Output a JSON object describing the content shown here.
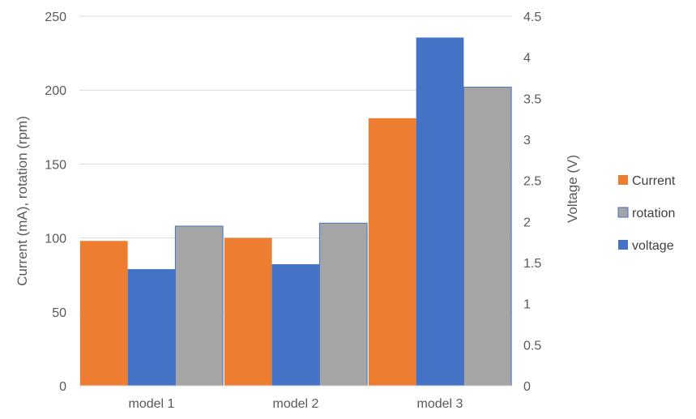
{
  "chart_data": {
    "type": "bar",
    "categories": [
      "model 1",
      "model 2",
      "model 3"
    ],
    "series": [
      {
        "name": "Current",
        "axis": "left",
        "color": "#ED7D31",
        "values": [
          98,
          100,
          181
        ]
      },
      {
        "name": "voltage",
        "axis": "right",
        "color": "#4472C4",
        "values": [
          1.42,
          1.48,
          4.24
        ]
      },
      {
        "name": "rotation",
        "axis": "left",
        "color": "#A5A5A5",
        "values": [
          108,
          110,
          202
        ]
      }
    ],
    "legend_order": [
      "Current",
      "rotation",
      "voltage"
    ],
    "legend_position": "right",
    "ylabel": "Current (mA), rotation (rpm)",
    "y2label": "Voltage (V)",
    "xlabel": "",
    "ylim": [
      0,
      250
    ],
    "yticks": [
      "0",
      "50",
      "100",
      "150",
      "200",
      "250"
    ],
    "y2lim": [
      0,
      4.5
    ],
    "y2ticks": [
      "0",
      "0.5",
      "1",
      "1.5",
      "2",
      "2.5",
      "3",
      "3.5",
      "4",
      "4.5"
    ],
    "grid": true,
    "gridline_color": "#D9D9D9"
  }
}
